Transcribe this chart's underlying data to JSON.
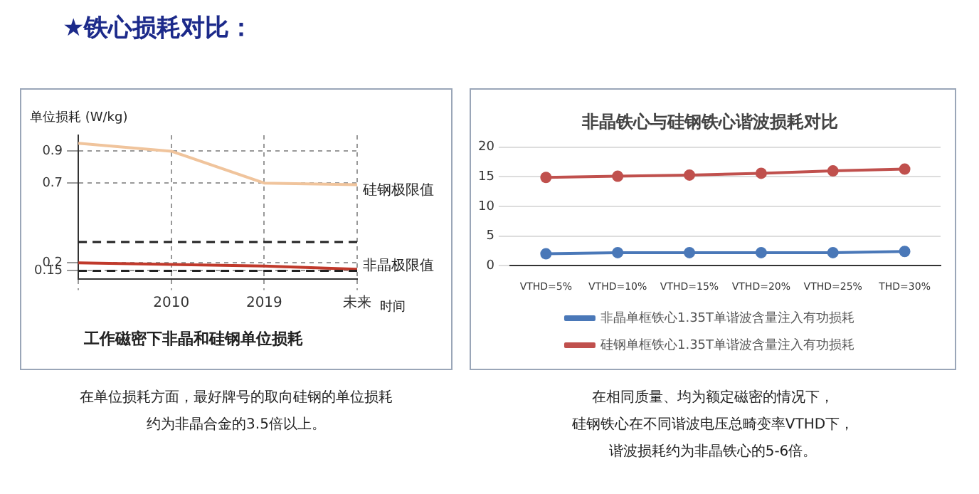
{
  "chart_data": [
    {
      "type": "line",
      "title": "★铁心损耗对比：",
      "subtitle": "工作磁密下非晶和硅钢单位损耗",
      "xlabel": "时间",
      "ylabel": "单位损耗 (W/kg)",
      "categories": [
        null,
        "2010",
        "2019",
        "未来"
      ],
      "series": [
        {
          "name": "硅钢极限值",
          "color": "#f0c49c",
          "values": [
            0.95,
            0.9,
            0.7,
            0.69
          ]
        },
        {
          "name": "非晶极限值",
          "color": "#c0392b",
          "values": [
            0.2,
            0.19,
            0.18,
            0.16
          ]
        }
      ],
      "ylim": [
        0.1,
        1
      ],
      "yticks": [
        0.15,
        0.2,
        0.7,
        0.9
      ],
      "grid": true,
      "legend": false,
      "marker": "none",
      "ref_lines": [
        {
          "axis": "y",
          "value": 0.15,
          "color": "#222222",
          "line_style": "dashed"
        },
        {
          "axis": "y",
          "value": 0.33,
          "color": "#222222",
          "line_style": "dashed"
        }
      ],
      "annotations": [
        "在单位损耗方面，最好牌号的取向硅钢的单位损耗",
        "约为非晶合金的3.5倍以上。"
      ]
    },
    {
      "type": "line",
      "title": "非晶铁心与硅钢铁心谐波损耗对比",
      "categories": [
        "VTHD=5%",
        "VTHD=10%",
        "VTHD=15%",
        "VTHD=20%",
        "VTHD=25%",
        "THD=30%"
      ],
      "series": [
        {
          "name": "非晶单框铁心1.35T单谐波含量注入有功损耗",
          "color": "#4a78b8",
          "values": [
            2.0,
            2.2,
            2.2,
            2.2,
            2.2,
            2.4
          ]
        },
        {
          "name": "硅钢单框铁心1.35T单谐波含量注入有功损耗",
          "color": "#c0504d",
          "values": [
            14.9,
            15.1,
            15.3,
            15.6,
            16.0,
            16.3
          ]
        }
      ],
      "ylim": [
        0,
        20
      ],
      "yticks": [
        0,
        5,
        10,
        15,
        20
      ],
      "grid": "y",
      "legend": "bottom",
      "marker": "circle",
      "annotations": [
        "在相同质量、均为额定磁密的情况下，",
        "硅钢铁心在不同谐波电压总畸变率VTHD下，",
        "谐波损耗约为非晶铁心的5-6倍。"
      ]
    }
  ]
}
